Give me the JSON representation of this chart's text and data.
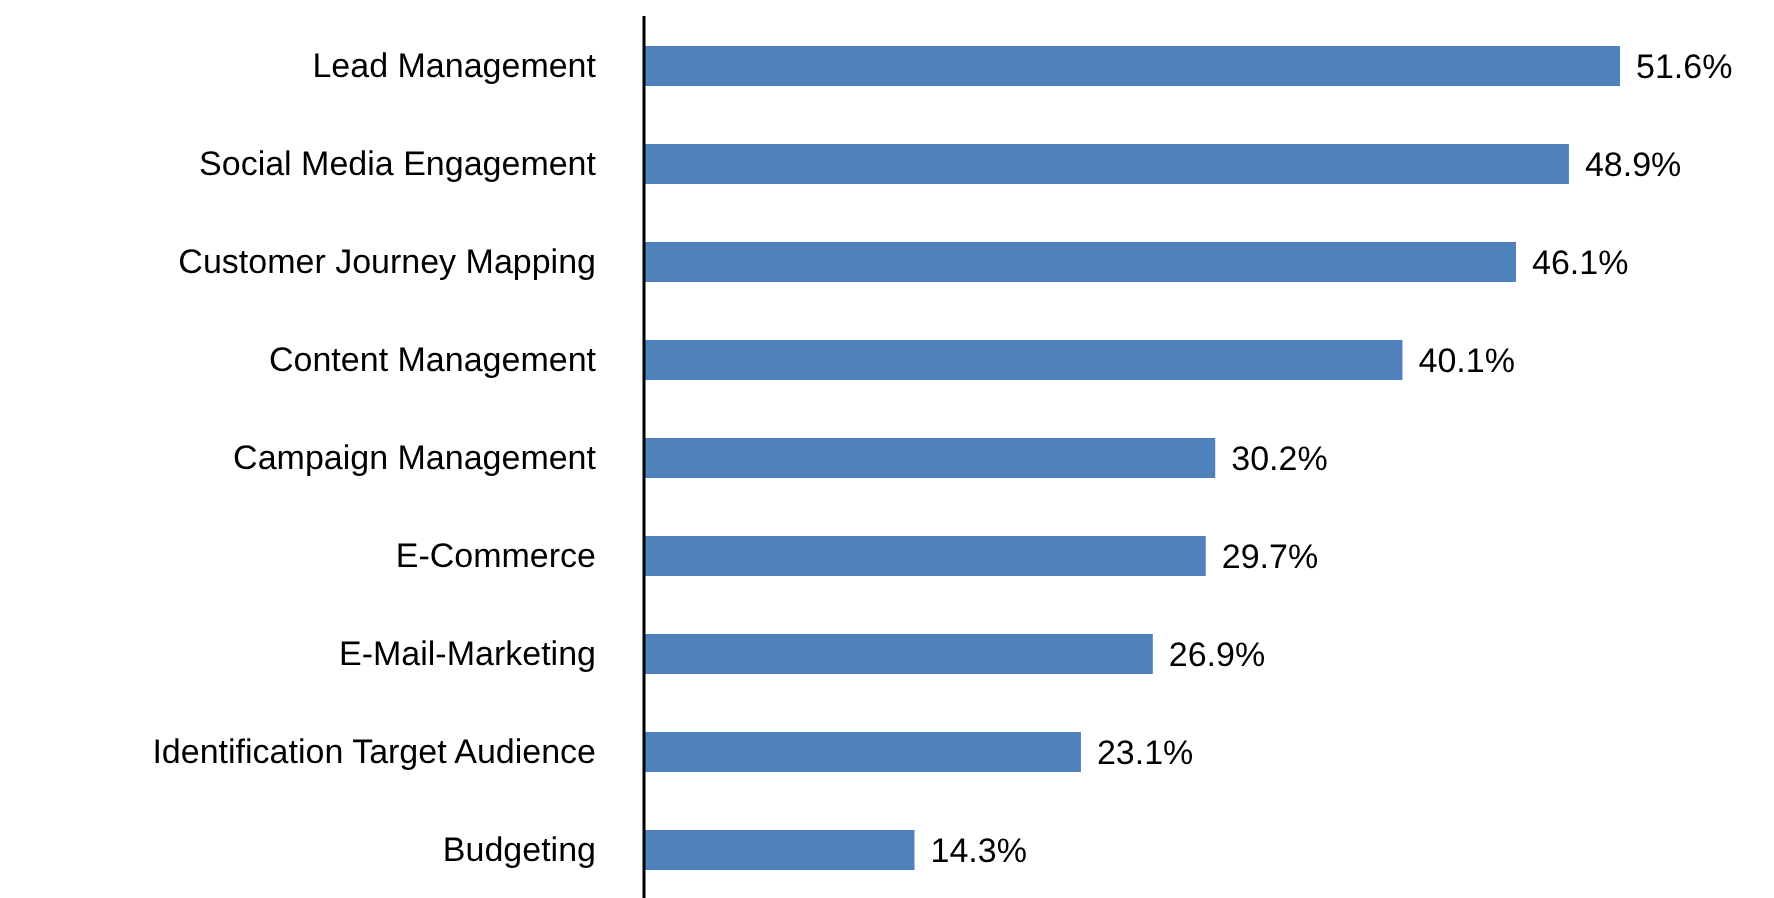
{
  "chart_data": {
    "type": "bar",
    "orientation": "horizontal",
    "categories": [
      "Lead Management",
      "Social Media Engagement",
      "Customer Journey Mapping",
      "Content Management",
      "Campaign Management",
      "E-Commerce",
      "E-Mail-Marketing",
      "Identification Target Audience",
      "Budgeting"
    ],
    "values": [
      51.6,
      48.9,
      46.1,
      40.1,
      30.2,
      29.7,
      26.9,
      23.1,
      14.3
    ],
    "value_labels": [
      "51.6%",
      "48.9%",
      "46.1%",
      "40.1%",
      "30.2%",
      "29.7%",
      "26.9%",
      "23.1%",
      "14.3%"
    ],
    "color": "#4f81bd",
    "grid": false,
    "legend": false
  }
}
